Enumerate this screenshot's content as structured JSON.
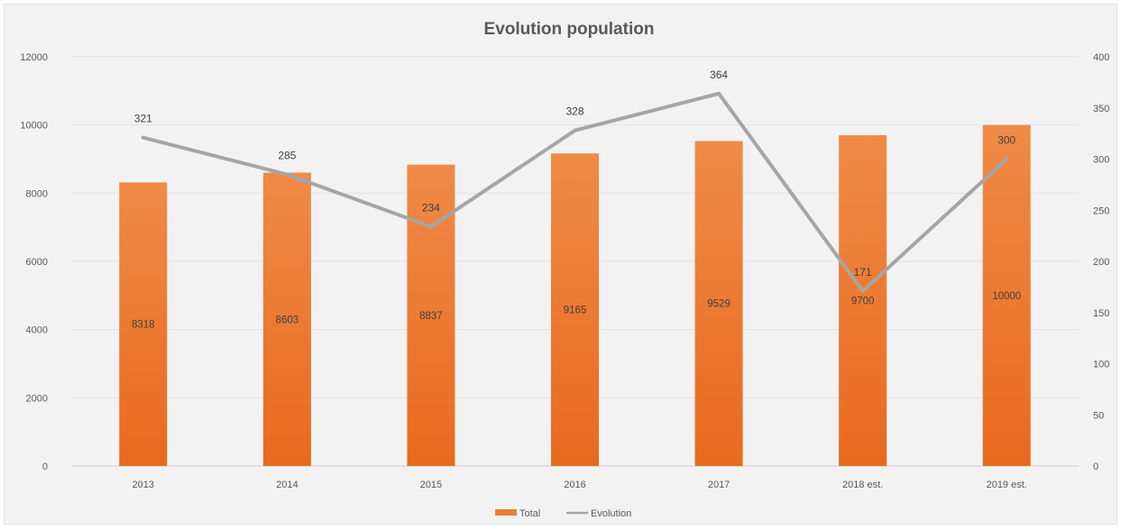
{
  "chart_data": {
    "type": "bar",
    "title": "Evolution population",
    "categories": [
      "2013",
      "2014",
      "2015",
      "2016",
      "2017",
      "2018 est.",
      "2019 est."
    ],
    "series": [
      {
        "name": "Total",
        "type": "bar",
        "axis": "left",
        "values": [
          8318,
          8603,
          8837,
          9165,
          9529,
          9700,
          10000
        ],
        "color": "#ed7d31"
      },
      {
        "name": "Evolution",
        "type": "line",
        "axis": "right",
        "values": [
          321,
          285,
          234,
          328,
          364,
          171,
          300
        ],
        "color": "#a5a5a5"
      }
    ],
    "ylim": [
      0,
      12000
    ],
    "yticks": [
      0,
      2000,
      4000,
      6000,
      8000,
      10000,
      12000
    ],
    "y2lim": [
      0,
      400
    ],
    "y2ticks": [
      0,
      50,
      100,
      150,
      200,
      250,
      300,
      350,
      400
    ],
    "grid": true,
    "legend": "bottom-center"
  }
}
